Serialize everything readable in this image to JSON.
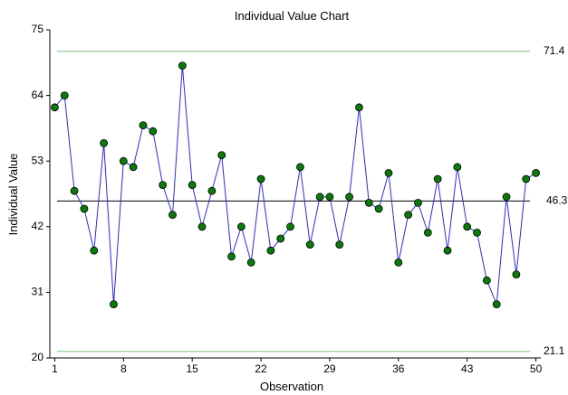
{
  "chart_data": {
    "type": "line",
    "title": "Individual Value Chart",
    "xlabel": "Observation",
    "ylabel": "Individual Value",
    "xlim": [
      0.5,
      50.5
    ],
    "ylim": [
      20,
      75
    ],
    "xticks": [
      1,
      8,
      15,
      22,
      29,
      36,
      43,
      50
    ],
    "yticks": [
      20,
      31,
      42,
      53,
      64,
      75
    ],
    "grid": false,
    "center_line": 46.3,
    "center_label": "46.3",
    "ucl": 71.4,
    "ucl_label": "71.4",
    "lcl": 21.1,
    "lcl_label": "21.1",
    "colors": {
      "line": "#2a2ae0",
      "marker_fill": "#0a7a0a",
      "marker_stroke": "#000000",
      "center_line": "#000000",
      "limit_lines": "#8fcf8f"
    },
    "series": [
      {
        "x": [
          1,
          2,
          3,
          4,
          5,
          6,
          7,
          8,
          9,
          10,
          11,
          12,
          13,
          14,
          15,
          16,
          17,
          18,
          19,
          20,
          21,
          22,
          23,
          24,
          25,
          26,
          27,
          28,
          29,
          30,
          31,
          32,
          33,
          34,
          35,
          36,
          37,
          38,
          39,
          40,
          41,
          42,
          43,
          44,
          45,
          46,
          47,
          48,
          49,
          50
        ],
        "values": [
          62,
          64,
          48,
          45,
          38,
          56,
          29,
          53,
          52,
          59,
          58,
          49,
          44,
          69,
          49,
          42,
          48,
          54,
          37,
          42,
          36,
          50,
          38,
          40,
          42,
          52,
          39,
          47,
          47,
          39,
          47,
          62,
          46,
          45,
          51,
          36,
          44,
          46,
          41,
          50,
          38,
          52,
          42,
          41,
          33,
          29,
          47,
          34,
          50,
          51
        ]
      }
    ]
  }
}
